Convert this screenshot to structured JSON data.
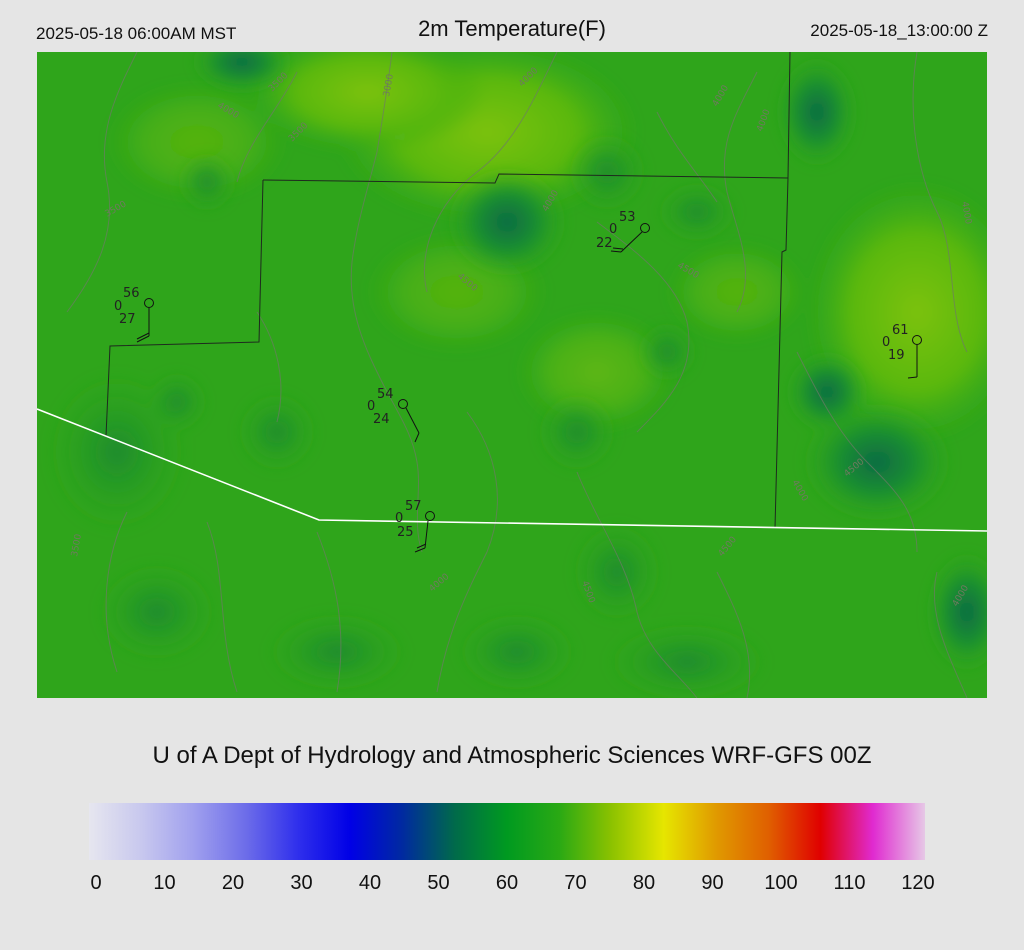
{
  "header": {
    "local_time": "2025-05-18 06:00AM MST",
    "title": "2m Temperature(F)",
    "utc_time": "2025-05-18_13:00:00 Z"
  },
  "footer": {
    "credit": "U of A Dept of Hydrology and Atmospheric Sciences WRF-GFS 00Z"
  },
  "colorbar": {
    "ticks": [
      "0",
      "10",
      "20",
      "30",
      "40",
      "50",
      "60",
      "70",
      "80",
      "90",
      "100",
      "110",
      "120"
    ],
    "colors": [
      "#e6e6ef",
      "#c8c8ee",
      "#a0a0ee",
      "#6d6de9",
      "#2f2fec",
      "#0000e6",
      "#002aa0",
      "#006a4a",
      "#009a20",
      "#2aa914",
      "#8cc200",
      "#e6e600",
      "#e09a00",
      "#e06000",
      "#e00000",
      "#e02ad0",
      "#e6c8e6"
    ]
  },
  "stations": [
    {
      "temp": "56",
      "mid": "0",
      "dew": "27"
    },
    {
      "temp": "53",
      "mid": "0",
      "dew": "22"
    },
    {
      "temp": "61",
      "mid": "0",
      "dew": "19"
    },
    {
      "temp": "54",
      "mid": "0",
      "dew": "24"
    },
    {
      "temp": "57",
      "mid": "0",
      "dew": "25"
    }
  ],
  "contour_labels": [
    "3000",
    "3500",
    "3500",
    "4000",
    "4000",
    "4000",
    "4000",
    "3500",
    "4500",
    "4500",
    "4000",
    "4000",
    "4000",
    "4500",
    "4500",
    "4500",
    "4000",
    "4000",
    "3500"
  ]
}
